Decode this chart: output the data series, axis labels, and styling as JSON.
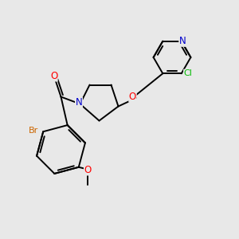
{
  "background_color": "#e8e8e8",
  "bond_color": "#000000",
  "atom_colors": {
    "N": "#0000cc",
    "O": "#ff0000",
    "Br": "#cc6600",
    "Cl": "#00bb00",
    "C": "#000000"
  },
  "figsize": [
    3.0,
    3.0
  ],
  "dpi": 100,
  "lw": 1.4,
  "font_size": 8.5
}
